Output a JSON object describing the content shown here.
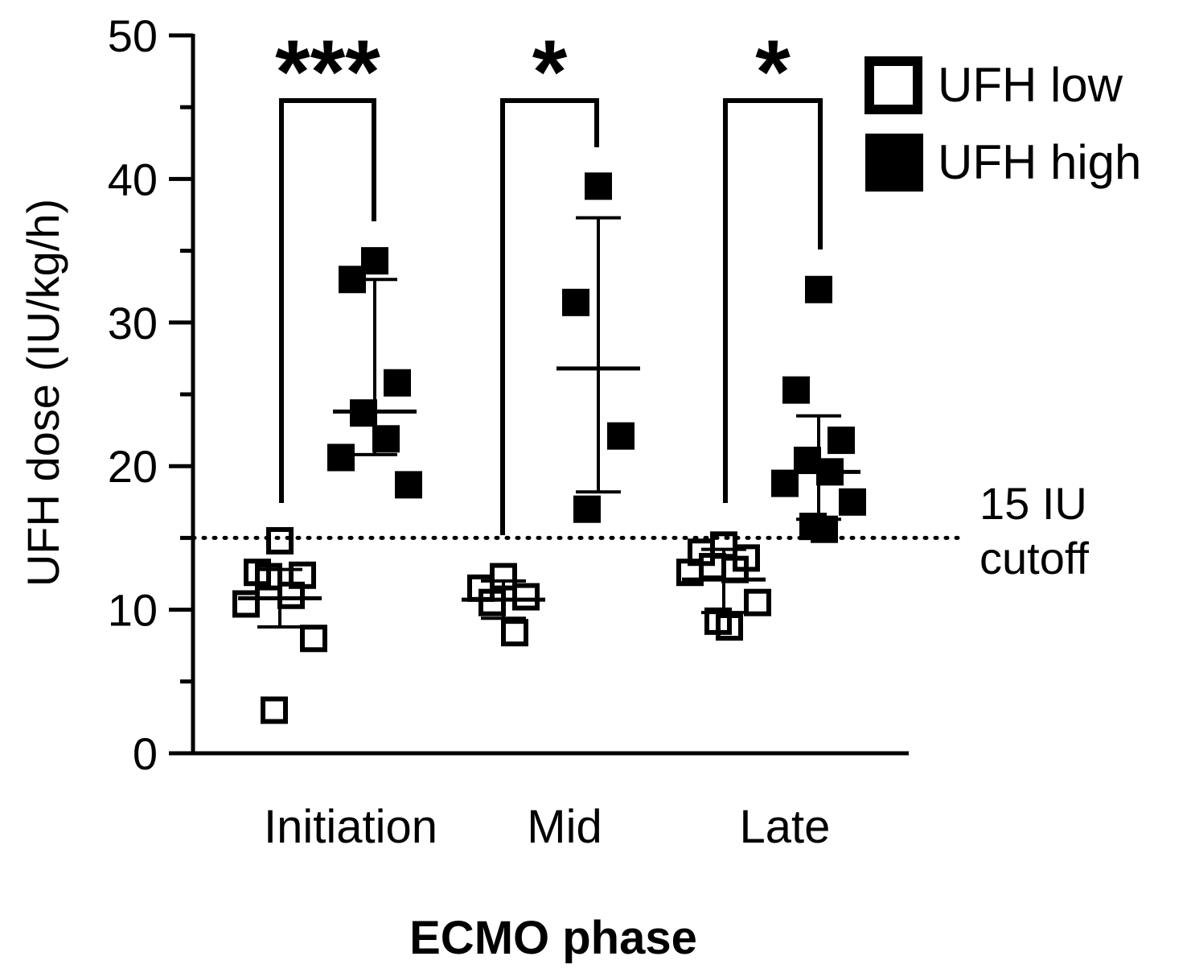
{
  "chart_data": {
    "type": "scatter",
    "xlabel": "ECMO phase",
    "ylabel": "UFH dose (IU/kg/h)",
    "ylim": [
      0,
      50
    ],
    "yticks": [
      0,
      10,
      20,
      30,
      40,
      50
    ],
    "categories": [
      "Initiation",
      "Mid",
      "Late"
    ],
    "legend_position": "top-right",
    "series": [
      {
        "name": "UFH low",
        "marker": "open-square",
        "groups": [
          {
            "category": "Initiation",
            "points": [
              14.8,
              12.6,
              12.4,
              12.3,
              11.0,
              10.4,
              8.0,
              3.0
            ],
            "mean": 10.8,
            "sd_low": 8.8,
            "sd_high": 12.8
          },
          {
            "category": "Mid",
            "points": [
              12.3,
              11.5,
              10.9,
              10.5,
              8.4
            ],
            "mean": 10.7,
            "sd_low": 9.4,
            "sd_high": 12.0
          },
          {
            "category": "Late",
            "points": [
              14.5,
              14.0,
              13.6,
              13.0,
              12.8,
              12.6,
              10.5,
              9.2,
              8.8
            ],
            "mean": 12.1,
            "sd_low": 9.8,
            "sd_high": 14.2
          }
        ]
      },
      {
        "name": "UFH high",
        "marker": "filled-square",
        "groups": [
          {
            "category": "Initiation",
            "points": [
              34.3,
              33.0,
              25.8,
              23.7,
              21.9,
              20.6,
              18.7
            ],
            "mean": 23.8,
            "sd_low": 20.8,
            "sd_high": 33.0
          },
          {
            "category": "Mid",
            "points": [
              39.5,
              31.4,
              22.1,
              17.0
            ],
            "mean": 26.8,
            "sd_low": 18.2,
            "sd_high": 37.3
          },
          {
            "category": "Late",
            "points": [
              32.3,
              25.3,
              21.8,
              20.4,
              19.6,
              18.8,
              17.5,
              15.8,
              15.6
            ],
            "mean": 19.6,
            "sd_low": 16.3,
            "sd_high": 23.5
          }
        ]
      }
    ],
    "significance": [
      {
        "category": "Initiation",
        "label": "***"
      },
      {
        "category": "Mid",
        "label": "*"
      },
      {
        "category": "Late",
        "label": "*"
      }
    ],
    "reference_lines": [
      {
        "y": 15,
        "label_lines": [
          "15 IU",
          "cutoff"
        ]
      },
      {
        "y": 0,
        "label_lines": []
      }
    ]
  }
}
